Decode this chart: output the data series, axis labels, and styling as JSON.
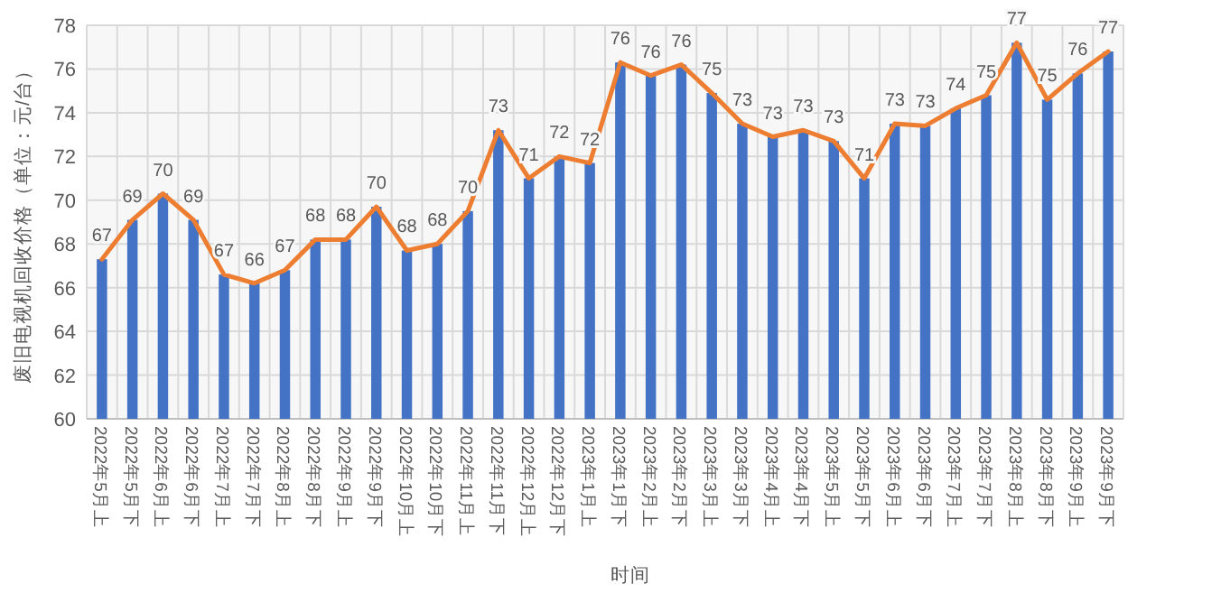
{
  "chart_data": {
    "type": "bar",
    "xlabel": "时间",
    "ylabel": "废旧电视机回收价格（单位：元/台）",
    "categories": [
      "2022年5月上",
      "2022年5月下",
      "2022年6月上",
      "2022年6月下",
      "2022年7月上",
      "2022年7月下",
      "2022年8月上",
      "2022年8月下",
      "2022年9月上",
      "2022年9月下",
      "2022年10月上",
      "2022年10月下",
      "2022年11月上",
      "2022年11月下",
      "2022年12月上",
      "2022年12月下",
      "2023年1月上",
      "2023年1月下",
      "2023年2月上",
      "2023年2月下",
      "2023年3月上",
      "2023年3月下",
      "2023年4月上",
      "2023年4月下",
      "2023年5月上",
      "2023年5月下",
      "2023年6月上",
      "2023年6月下",
      "2023年7月上",
      "2023年7月下",
      "2023年8月上",
      "2023年8月下",
      "2023年9月上",
      "2023年9月下"
    ],
    "series": [
      {
        "color": "#4472c4",
        "values": [
          67.3,
          69.1,
          70.3,
          69.1,
          66.6,
          66.2,
          66.8,
          68.2,
          68.2,
          69.7,
          67.7,
          68.0,
          69.5,
          73.2,
          71.0,
          72.0,
          71.7,
          76.3,
          75.7,
          76.2,
          74.9,
          73.5,
          72.9,
          73.2,
          72.7,
          71.0,
          73.5,
          73.4,
          74.2,
          74.8,
          77.2,
          74.6,
          75.8,
          76.8
        ]
      },
      {
        "type": "line",
        "color": "#ed7d31",
        "values": [
          67.3,
          69.1,
          70.3,
          69.1,
          66.6,
          66.2,
          66.8,
          68.2,
          68.2,
          69.7,
          67.7,
          68.0,
          69.5,
          73.2,
          71.0,
          72.0,
          71.7,
          76.3,
          75.7,
          76.2,
          74.9,
          73.5,
          72.9,
          73.2,
          72.7,
          71.0,
          73.5,
          73.4,
          74.2,
          74.8,
          77.2,
          74.6,
          75.8,
          76.8
        ],
        "value_labels": [
          "67",
          "69",
          "70",
          "69",
          "67",
          "66",
          "67",
          "68",
          "68",
          "70",
          "68",
          "68",
          "70",
          "73",
          "71",
          "72",
          "72",
          "76",
          "76",
          "76",
          "75",
          "73",
          "73",
          "73",
          "73",
          "71",
          "73",
          "73",
          "74",
          "75",
          "77",
          "75",
          "76",
          "77"
        ]
      }
    ],
    "ylim": [
      60,
      78
    ],
    "yticks": [
      60,
      62,
      64,
      66,
      68,
      70,
      72,
      74,
      76,
      78
    ],
    "grid": true
  }
}
